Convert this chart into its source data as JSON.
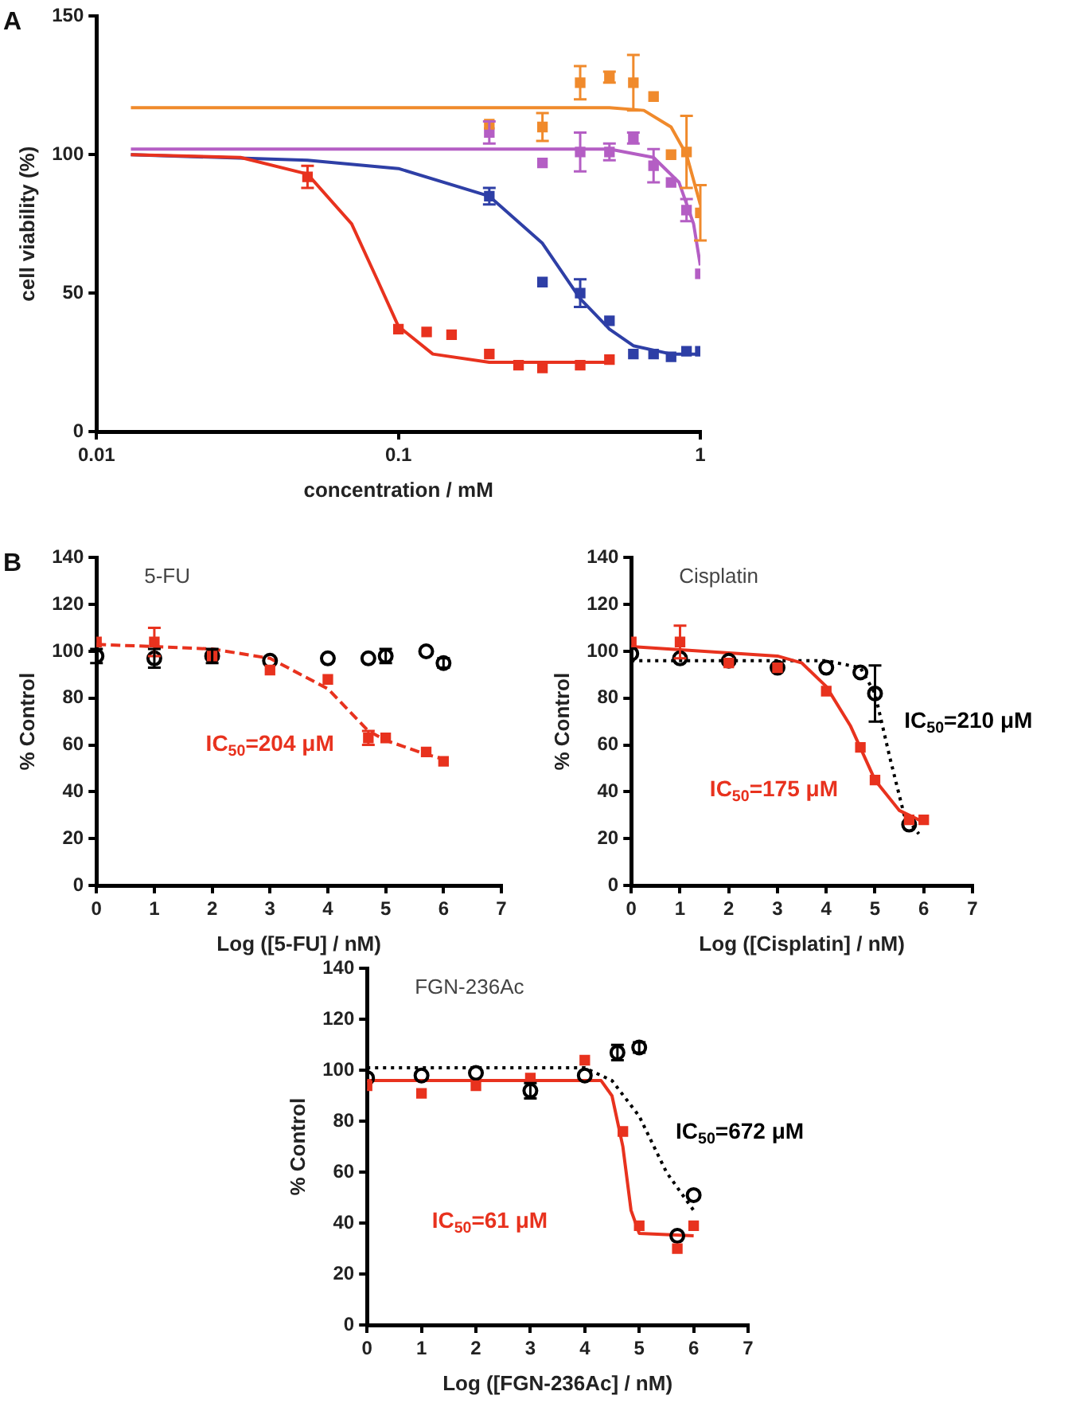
{
  "chart_data": [
    {
      "type": "scatter",
      "xlabel": "concentration / mM",
      "ylabel": "cell viability (%)",
      "log": "x",
      "xlim": [
        0.01,
        1
      ],
      "xticks": [
        0.01,
        0.1,
        1
      ],
      "ylim": [
        0,
        150
      ],
      "yticks": [
        0,
        50,
        100,
        150
      ],
      "grid": false,
      "annotations": [
        "A"
      ],
      "series": [
        {
          "color": "#e8321e",
          "marker": "square",
          "x": [
            0.05,
            0.1,
            0.124,
            0.15,
            0.2,
            0.25,
            0.3,
            0.4,
            0.5
          ],
          "values": [
            92,
            37,
            36,
            35,
            28,
            24,
            23,
            24,
            26
          ],
          "errors": [
            4,
            null,
            null,
            null,
            null,
            null,
            null,
            null,
            null
          ]
        },
        {
          "color": "#2e3fa6",
          "marker": "square",
          "x": [
            0.2,
            0.3,
            0.4,
            0.5,
            0.6,
            0.7,
            0.8,
            0.9,
            1
          ],
          "values": [
            85,
            54,
            50,
            40,
            28,
            28,
            27,
            29,
            29
          ],
          "errors": [
            3,
            null,
            5,
            null,
            null,
            null,
            null,
            null,
            null
          ]
        },
        {
          "color": "#f08a2c",
          "marker": "square",
          "x": [
            0.2,
            0.3,
            0.4,
            0.5,
            0.6,
            0.7,
            0.8,
            0.9,
            1
          ],
          "values": [
            111,
            110,
            126,
            128,
            126,
            121,
            100,
            101,
            79
          ],
          "errors": [
            null,
            5,
            6,
            2,
            10,
            null,
            null,
            13,
            10
          ]
        },
        {
          "color": "#b45ec4",
          "marker": "square",
          "x": [
            0.2,
            0.3,
            0.4,
            0.5,
            0.6,
            0.7,
            0.8,
            0.9,
            1
          ],
          "values": [
            108,
            97,
            101,
            101,
            106,
            96,
            90,
            80,
            57
          ],
          "errors": [
            4,
            null,
            7,
            3,
            2,
            6,
            null,
            4,
            null
          ]
        },
        {
          "type": "line",
          "color": "#e8321e",
          "line_style": "solid",
          "x": [
            0.013,
            0.03,
            0.05,
            0.07,
            0.085,
            0.1,
            0.13,
            0.2,
            0.5
          ],
          "values": [
            100,
            99,
            93,
            75,
            55,
            38,
            28,
            25,
            25
          ]
        },
        {
          "type": "line",
          "color": "#2e3fa6",
          "line_style": "solid",
          "x": [
            0.013,
            0.05,
            0.1,
            0.2,
            0.3,
            0.4,
            0.5,
            0.6,
            0.8,
            1
          ],
          "values": [
            100,
            98,
            95,
            85,
            68,
            48,
            37,
            31,
            28,
            28
          ]
        },
        {
          "type": "line",
          "color": "#f08a2c",
          "line_style": "solid",
          "x": [
            0.013,
            0.5,
            0.65,
            0.8,
            0.9,
            1
          ],
          "values": [
            117,
            117,
            116,
            110,
            100,
            82
          ]
        },
        {
          "type": "line",
          "color": "#b45ec4",
          "line_style": "solid",
          "x": [
            0.013,
            0.5,
            0.7,
            0.85,
            0.95,
            1
          ],
          "values": [
            102,
            102,
            99,
            90,
            75,
            60
          ]
        }
      ]
    },
    {
      "type": "scatter",
      "title": "5-FU",
      "xlabel": "Log ([5-FU] / nM)",
      "ylabel": "% Control",
      "xlim": [
        0,
        7
      ],
      "xticks": [
        0,
        1,
        2,
        3,
        4,
        5,
        6,
        7
      ],
      "ylim": [
        0,
        140
      ],
      "yticks": [
        0,
        20,
        40,
        60,
        80,
        100,
        120,
        140
      ],
      "grid": false,
      "annotations": [
        "B",
        "IC$_{50}$=204 μM"
      ],
      "series": [
        {
          "color": "#e8321e",
          "marker": "square",
          "x": [
            0,
            1,
            2,
            3,
            4,
            4.7,
            5,
            5.7,
            6
          ],
          "values": [
            104,
            104,
            98,
            92,
            88,
            63,
            63,
            57,
            53
          ],
          "errors": [
            null,
            6,
            null,
            null,
            null,
            3,
            null,
            null,
            null
          ]
        },
        {
          "color": "#000000",
          "marker": "circle",
          "x": [
            0,
            1,
            2,
            3,
            4,
            4.7,
            5,
            5.7,
            6
          ],
          "values": [
            98,
            97,
            98,
            96,
            97,
            97,
            98,
            100,
            95
          ],
          "errors": [
            3,
            4,
            3,
            null,
            null,
            null,
            3,
            null,
            2
          ]
        },
        {
          "type": "line",
          "color": "#e8321e",
          "line_style": "dashed",
          "x": [
            0,
            2,
            3,
            4,
            4.7,
            5,
            5.7,
            6
          ],
          "values": [
            103,
            101,
            97,
            84,
            66,
            62,
            56,
            54
          ]
        }
      ]
    },
    {
      "type": "scatter",
      "title": "Cisplatin",
      "xlabel": "Log ([Cisplatin] / nM)",
      "ylabel": "% Control",
      "xlim": [
        0,
        7
      ],
      "xticks": [
        0,
        1,
        2,
        3,
        4,
        5,
        6,
        7
      ],
      "ylim": [
        0,
        140
      ],
      "yticks": [
        0,
        20,
        40,
        60,
        80,
        100,
        120,
        140
      ],
      "grid": false,
      "annotations": [
        "IC$_{50}$=175 μM",
        "IC$_{50}$=210 μM"
      ],
      "series": [
        {
          "color": "#e8321e",
          "marker": "square",
          "x": [
            0,
            1,
            2,
            3,
            4,
            4.7,
            5,
            5.7,
            6
          ],
          "values": [
            104,
            104,
            95,
            93,
            83,
            59,
            45,
            28,
            28
          ],
          "errors": [
            null,
            7,
            null,
            null,
            null,
            null,
            null,
            null,
            null
          ]
        },
        {
          "color": "#000000",
          "marker": "circle",
          "x": [
            0,
            1,
            2,
            3,
            4,
            4.7,
            5,
            5.7
          ],
          "values": [
            99,
            97,
            96,
            93,
            93,
            91,
            82,
            26
          ],
          "errors": [
            null,
            null,
            null,
            null,
            null,
            null,
            12,
            null
          ]
        },
        {
          "type": "line",
          "color": "#e8321e",
          "line_style": "solid",
          "x": [
            0,
            3,
            3.5,
            4,
            4.5,
            5,
            5.5,
            6
          ],
          "values": [
            102,
            98,
            95,
            85,
            68,
            45,
            32,
            27
          ]
        },
        {
          "type": "line",
          "color": "#000000",
          "line_style": "dotted",
          "x": [
            0,
            4,
            4.7,
            5,
            5.3,
            5.6,
            5.9
          ],
          "values": [
            96,
            96,
            93,
            82,
            55,
            30,
            22
          ]
        }
      ]
    },
    {
      "type": "scatter",
      "title": "FGN-236Ac",
      "xlabel": "Log ([FGN-236Ac] / nM)",
      "ylabel": "% Control",
      "xlim": [
        0,
        7
      ],
      "xticks": [
        0,
        1,
        2,
        3,
        4,
        5,
        6,
        7
      ],
      "ylim": [
        0,
        140
      ],
      "yticks": [
        0,
        20,
        40,
        60,
        80,
        100,
        120,
        140
      ],
      "grid": false,
      "annotations": [
        "IC$_{50}$=61 μM",
        "IC$_{50}$=672 μM"
      ],
      "series": [
        {
          "color": "#e8321e",
          "marker": "square",
          "x": [
            0,
            1,
            2,
            3,
            4,
            4.7,
            5,
            5.7,
            6
          ],
          "values": [
            94,
            91,
            94,
            97,
            104,
            76,
            39,
            30,
            39
          ]
        },
        {
          "color": "#000000",
          "marker": "circle",
          "x": [
            0,
            1,
            2,
            3,
            4,
            4.6,
            5,
            5.7,
            6
          ],
          "values": [
            97,
            98,
            99,
            92,
            98,
            107,
            109,
            35,
            51
          ],
          "errors": [
            null,
            null,
            null,
            3,
            null,
            3,
            2,
            null,
            null
          ]
        },
        {
          "type": "line",
          "color": "#e8321e",
          "line_style": "solid",
          "x": [
            0,
            4.3,
            4.5,
            4.7,
            4.85,
            5,
            6
          ],
          "values": [
            96,
            96,
            90,
            70,
            45,
            36,
            35
          ]
        },
        {
          "type": "line",
          "color": "#000000",
          "line_style": "dotted",
          "x": [
            0,
            4,
            4.5,
            5,
            5.5,
            6
          ],
          "values": [
            101,
            101,
            96,
            82,
            60,
            45
          ]
        }
      ]
    }
  ]
}
